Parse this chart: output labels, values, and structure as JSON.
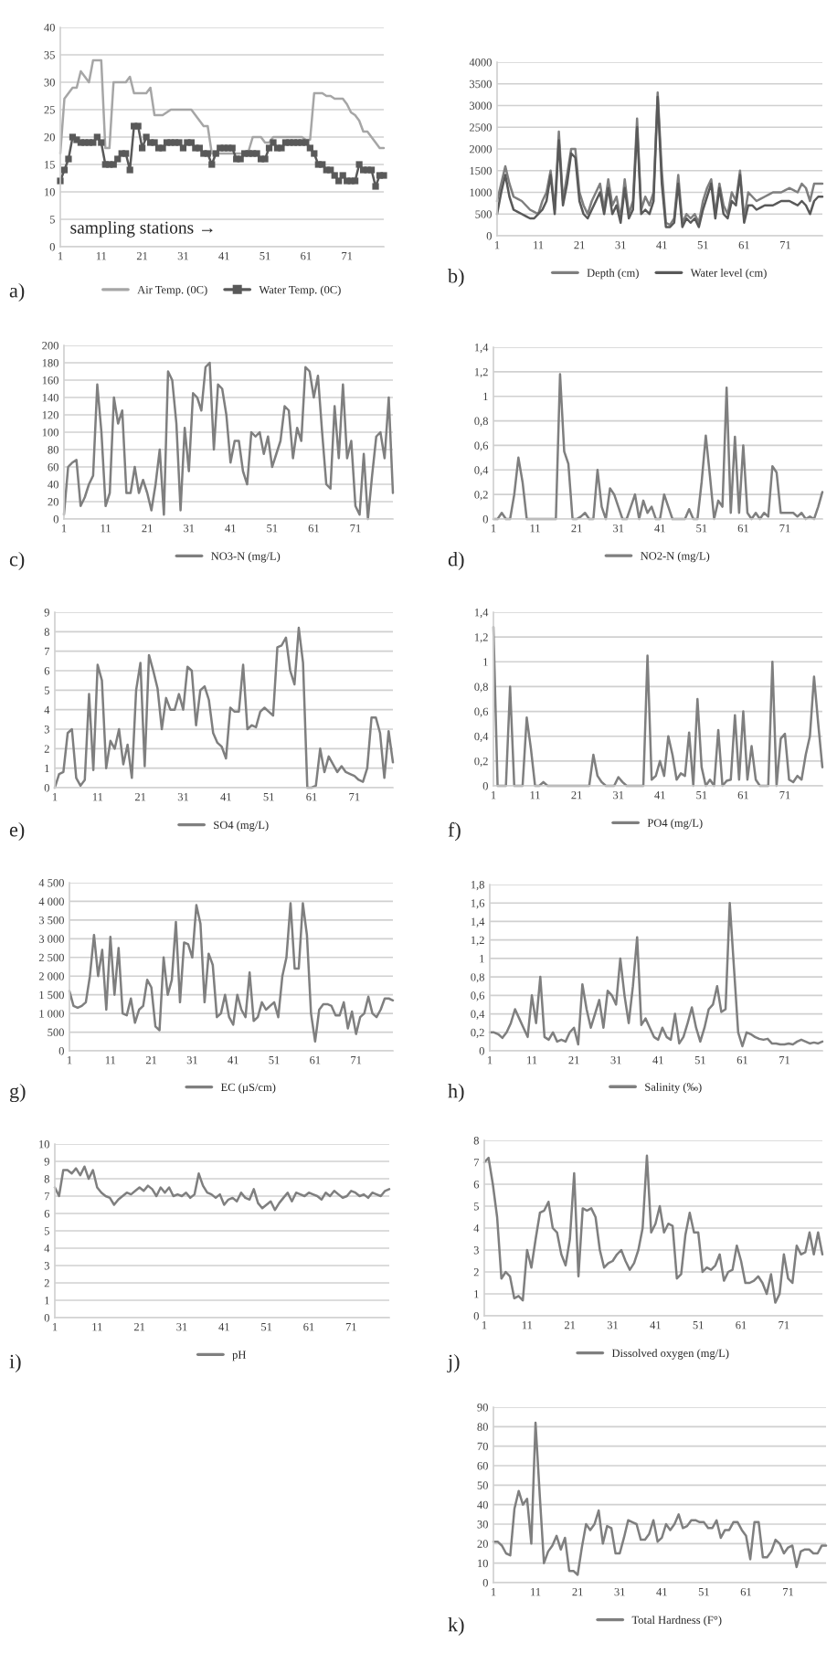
{
  "chart_data": [
    {
      "type": "line",
      "xlim": [
        1,
        80
      ],
      "xticks": [
        1,
        11,
        21,
        31,
        41,
        51,
        61,
        71
      ],
      "ylim": [
        0,
        40
      ],
      "yticks": [
        0,
        5,
        10,
        15,
        20,
        25,
        30,
        35,
        40
      ],
      "grid": "y",
      "legend": "bottom",
      "x": [
        1,
        2,
        3,
        4,
        5,
        6,
        7,
        8,
        9,
        10,
        11,
        12,
        13,
        14,
        15,
        16,
        17,
        18,
        19,
        20,
        21,
        22,
        23,
        24,
        25,
        26,
        27,
        28,
        29,
        30,
        31,
        32,
        33,
        34,
        35,
        36,
        37,
        38,
        39,
        40,
        41,
        42,
        43,
        44,
        45,
        46,
        47,
        48,
        49,
        50,
        51,
        52,
        53,
        54,
        55,
        56,
        57,
        58,
        59,
        60,
        61,
        62,
        63,
        64,
        65,
        66,
        67,
        68,
        69,
        70,
        71,
        72,
        73,
        74,
        75,
        76,
        77,
        78,
        79,
        80
      ],
      "series": [
        {
          "name": "Air Temp. (0C)",
          "color": "#a6a6a6",
          "marker": "none",
          "values": [
            17,
            27,
            28,
            29,
            29,
            32,
            31,
            30,
            34,
            34,
            34,
            18,
            18,
            30,
            30,
            30,
            30,
            31,
            28,
            28,
            28,
            28,
            29,
            24,
            24,
            24,
            24.5,
            25,
            25,
            25,
            25,
            25,
            25,
            24,
            23,
            22,
            22,
            17,
            17,
            17,
            17,
            17,
            17,
            17,
            17,
            17,
            17.5,
            20,
            20,
            20,
            19,
            19,
            20,
            20,
            20,
            20,
            20,
            20,
            20,
            20,
            19.5,
            19.5,
            28,
            28,
            28,
            27.5,
            27.5,
            27,
            27,
            27,
            26,
            24.5,
            24,
            23,
            21,
            21,
            20,
            19,
            18,
            18
          ]
        },
        {
          "name": "Water Temp. (0C)",
          "color": "#595959",
          "marker": "square",
          "values": [
            12,
            14,
            16,
            20,
            19.5,
            19,
            19,
            19,
            19,
            20,
            19,
            15,
            15,
            15,
            16,
            17,
            17,
            14,
            22,
            22,
            18,
            20,
            19,
            19,
            18,
            18,
            19,
            19,
            19,
            19,
            18,
            19,
            19,
            18,
            18,
            17,
            17,
            15,
            17,
            18,
            18,
            18,
            18,
            16,
            16,
            17,
            17,
            17,
            17,
            16,
            16,
            18,
            19,
            18,
            18,
            19,
            19,
            19,
            19,
            19,
            19,
            18,
            17,
            15,
            15,
            14,
            14,
            13,
            12,
            13,
            12,
            12,
            12,
            15,
            14,
            14,
            14,
            11,
            13,
            13
          ]
        }
      ],
      "annotations": [
        "sampling stations →",
        "a)"
      ]
    },
    {
      "type": "line",
      "xlim": [
        1,
        80
      ],
      "xticks": [
        1,
        11,
        21,
        31,
        41,
        51,
        61,
        71
      ],
      "ylim": [
        0,
        4000
      ],
      "yticks": [
        0,
        500,
        1000,
        1500,
        2000,
        2500,
        3000,
        3500,
        4000
      ],
      "grid": "y",
      "legend": "bottom",
      "x": [
        1,
        2,
        3,
        4,
        5,
        6,
        7,
        8,
        9,
        10,
        11,
        12,
        13,
        14,
        15,
        16,
        17,
        18,
        19,
        20,
        21,
        22,
        23,
        24,
        25,
        26,
        27,
        28,
        29,
        30,
        31,
        32,
        33,
        34,
        35,
        36,
        37,
        38,
        39,
        40,
        41,
        42,
        43,
        44,
        45,
        46,
        47,
        48,
        49,
        50,
        51,
        52,
        53,
        54,
        55,
        56,
        57,
        58,
        59,
        60,
        61,
        62,
        63,
        64,
        65,
        66,
        67,
        68,
        69,
        70,
        71,
        72,
        73,
        74,
        75,
        76,
        77,
        78,
        79,
        80
      ],
      "series": [
        {
          "name": "Depth (cm)",
          "color": "#7f7f7f",
          "values": [
            800,
            1200,
            1600,
            1200,
            900,
            850,
            800,
            700,
            600,
            550,
            500,
            800,
            1000,
            1500,
            600,
            2400,
            800,
            1400,
            2000,
            2000,
            1000,
            700,
            500,
            800,
            1000,
            1200,
            600,
            1300,
            700,
            900,
            400,
            1300,
            500,
            800,
            2700,
            600,
            900,
            700,
            1000,
            3300,
            1500,
            300,
            250,
            400,
            1400,
            300,
            500,
            400,
            500,
            300,
            800,
            1100,
            1300,
            500,
            1200,
            700,
            500,
            1000,
            800,
            1500,
            400,
            1000,
            900,
            800,
            850,
            900,
            950,
            1000,
            1000,
            1000,
            1050,
            1100,
            1050,
            1000,
            1200,
            1100,
            800,
            1200,
            1200,
            1200
          ]
        },
        {
          "name": "Water level (cm)",
          "color": "#595959",
          "values": [
            500,
            1000,
            1400,
            900,
            600,
            550,
            500,
            450,
            400,
            400,
            500,
            600,
            800,
            1400,
            500,
            2200,
            700,
            1200,
            1900,
            1800,
            800,
            500,
            400,
            600,
            800,
            1000,
            500,
            1100,
            500,
            700,
            300,
            1100,
            400,
            600,
            2500,
            500,
            600,
            500,
            800,
            3200,
            1200,
            200,
            200,
            300,
            1200,
            200,
            400,
            300,
            400,
            200,
            600,
            900,
            1200,
            400,
            1100,
            500,
            400,
            800,
            700,
            1400,
            300,
            700,
            700,
            600,
            650,
            700,
            700,
            700,
            750,
            800,
            800,
            800,
            750,
            700,
            800,
            700,
            500,
            800,
            900,
            900
          ]
        }
      ],
      "annotations": [
        "b)"
      ]
    },
    {
      "type": "line",
      "xlim": [
        1,
        80
      ],
      "xticks": [
        1,
        11,
        21,
        31,
        41,
        51,
        61,
        71
      ],
      "ylim": [
        0,
        200
      ],
      "yticks": [
        0,
        20,
        40,
        60,
        80,
        100,
        120,
        140,
        160,
        180,
        200
      ],
      "grid": "y",
      "legend": "bottom",
      "x": [
        1,
        2,
        3,
        4,
        5,
        6,
        7,
        8,
        9,
        10,
        11,
        12,
        13,
        14,
        15,
        16,
        17,
        18,
        19,
        20,
        21,
        22,
        23,
        24,
        25,
        26,
        27,
        28,
        29,
        30,
        31,
        32,
        33,
        34,
        35,
        36,
        37,
        38,
        39,
        40,
        41,
        42,
        43,
        44,
        45,
        46,
        47,
        48,
        49,
        50,
        51,
        52,
        53,
        54,
        55,
        56,
        57,
        58,
        59,
        60,
        61,
        62,
        63,
        64,
        65,
        66,
        67,
        68,
        69,
        70,
        71,
        72,
        73,
        74,
        75,
        76,
        77,
        78,
        79,
        80
      ],
      "series": [
        {
          "name": "NO3-N (mg/L)",
          "color": "#7f7f7f",
          "values": [
            5,
            60,
            65,
            68,
            15,
            25,
            40,
            50,
            155,
            100,
            15,
            30,
            140,
            110,
            125,
            30,
            30,
            60,
            30,
            45,
            30,
            10,
            40,
            80,
            5,
            170,
            160,
            110,
            10,
            105,
            55,
            145,
            140,
            125,
            175,
            180,
            80,
            155,
            150,
            120,
            65,
            90,
            90,
            55,
            40,
            100,
            95,
            100,
            75,
            95,
            60,
            75,
            90,
            130,
            125,
            70,
            105,
            90,
            175,
            170,
            140,
            165,
            100,
            40,
            35,
            130,
            70,
            155,
            70,
            90,
            15,
            5,
            75,
            0,
            50,
            95,
            100,
            70,
            140,
            30
          ]
        }
      ],
      "annotations": [
        "c)"
      ]
    },
    {
      "type": "line",
      "xlim": [
        1,
        80
      ],
      "xticks": [
        1,
        11,
        21,
        31,
        41,
        51,
        61,
        71
      ],
      "ylim": [
        0,
        1.4
      ],
      "yticks": [
        0,
        {
          "value": 0.2,
          "label": "0,2"
        },
        {
          "value": 0.4,
          "label": "0,4"
        },
        {
          "value": 0.6,
          "label": "0,6"
        },
        {
          "value": 0.8,
          "label": "0,8"
        },
        1,
        {
          "value": 1.2,
          "label": "1,2"
        },
        {
          "value": 1.4,
          "label": "1,4"
        }
      ],
      "grid": "y",
      "legend": "bottom",
      "x": [
        1,
        2,
        3,
        4,
        5,
        6,
        7,
        8,
        9,
        10,
        11,
        12,
        13,
        14,
        15,
        16,
        17,
        18,
        19,
        20,
        21,
        22,
        23,
        24,
        25,
        26,
        27,
        28,
        29,
        30,
        31,
        32,
        33,
        34,
        35,
        36,
        37,
        38,
        39,
        40,
        41,
        42,
        43,
        44,
        45,
        46,
        47,
        48,
        49,
        50,
        51,
        52,
        53,
        54,
        55,
        56,
        57,
        58,
        59,
        60,
        61,
        62,
        63,
        64,
        65,
        66,
        67,
        68,
        69,
        70,
        71,
        72,
        73,
        74,
        75,
        76,
        77,
        78,
        79,
        80
      ],
      "series": [
        {
          "name": "NO2-N (mg/L)",
          "color": "#7f7f7f",
          "values": [
            0,
            0,
            0.05,
            0,
            0,
            0.2,
            0.5,
            0.3,
            0,
            0,
            0,
            0,
            0,
            0,
            0,
            0,
            1.18,
            0.55,
            0.45,
            0,
            0,
            0.02,
            0.05,
            0,
            0,
            0.4,
            0.1,
            0,
            0.25,
            0.2,
            0.1,
            0,
            0,
            0.1,
            0.2,
            0,
            0.15,
            0.05,
            0.1,
            0,
            0,
            0.2,
            0.1,
            0,
            0,
            0,
            0,
            0.08,
            0,
            0,
            0.3,
            0.68,
            0.35,
            0,
            0.15,
            0.1,
            1.07,
            0.05,
            0.67,
            0.05,
            0.6,
            0.05,
            0,
            0.05,
            0,
            0.05,
            0.02,
            0.43,
            0.38,
            0.05,
            0.05,
            0.05,
            0.05,
            0.02,
            0.05,
            0,
            0.02,
            0,
            0.1,
            0.22
          ]
        }
      ],
      "annotations": [
        "d)"
      ]
    },
    {
      "type": "line",
      "xlim": [
        1,
        80
      ],
      "xticks": [
        1,
        11,
        21,
        31,
        41,
        51,
        61,
        71
      ],
      "ylim": [
        0,
        9
      ],
      "yticks": [
        0,
        1,
        2,
        3,
        4,
        5,
        6,
        7,
        8,
        9
      ],
      "grid": "y",
      "legend": "bottom",
      "x": [
        1,
        2,
        3,
        4,
        5,
        6,
        7,
        8,
        9,
        10,
        11,
        12,
        13,
        14,
        15,
        16,
        17,
        18,
        19,
        20,
        21,
        22,
        23,
        24,
        25,
        26,
        27,
        28,
        29,
        30,
        31,
        32,
        33,
        34,
        35,
        36,
        37,
        38,
        39,
        40,
        41,
        42,
        43,
        44,
        45,
        46,
        47,
        48,
        49,
        50,
        51,
        52,
        53,
        54,
        55,
        56,
        57,
        58,
        59,
        60,
        61,
        62,
        63,
        64,
        65,
        66,
        67,
        68,
        69,
        70,
        71,
        72,
        73,
        74,
        75,
        76,
        77,
        78,
        79,
        80
      ],
      "series": [
        {
          "name": "SO4 (mg/L)",
          "color": "#7f7f7f",
          "values": [
            0,
            0.7,
            0.8,
            2.8,
            3,
            0.5,
            0.1,
            0.4,
            4.8,
            0.9,
            6.3,
            5.5,
            1,
            2.4,
            2,
            3,
            1.2,
            2.2,
            0.5,
            5,
            6.4,
            1.1,
            6.8,
            6,
            5.1,
            3,
            4.6,
            4,
            4,
            4.8,
            4,
            6.2,
            6,
            3.2,
            5,
            5.2,
            4.5,
            2.8,
            2.3,
            2.1,
            1.5,
            4.1,
            3.9,
            3.9,
            6.3,
            3,
            3.2,
            3.1,
            3.9,
            4.1,
            3.9,
            3.7,
            7.2,
            7.3,
            7.7,
            6,
            5.3,
            8.2,
            6.4,
            0,
            0,
            0.1,
            2,
            0.8,
            1.6,
            1.2,
            0.8,
            1.1,
            0.8,
            0.7,
            0.6,
            0.4,
            0.3,
            1,
            3.6,
            3.6,
            2.8,
            0.5,
            2.9,
            1.3
          ]
        }
      ],
      "annotations": [
        "e)"
      ]
    },
    {
      "type": "line",
      "xlim": [
        1,
        80
      ],
      "xticks": [
        1,
        11,
        21,
        31,
        41,
        51,
        61,
        71
      ],
      "ylim": [
        0,
        1.4
      ],
      "yticks": [
        0,
        {
          "value": 0.2,
          "label": "0,2"
        },
        {
          "value": 0.4,
          "label": "0,4"
        },
        {
          "value": 0.6,
          "label": "0,6"
        },
        {
          "value": 0.8,
          "label": "0,8"
        },
        1,
        {
          "value": 1.2,
          "label": "1,2"
        },
        {
          "value": 1.4,
          "label": "1,4"
        }
      ],
      "grid": "y",
      "legend": "bottom",
      "x": [
        1,
        2,
        3,
        4,
        5,
        6,
        7,
        8,
        9,
        10,
        11,
        12,
        13,
        14,
        15,
        16,
        17,
        18,
        19,
        20,
        21,
        22,
        23,
        24,
        25,
        26,
        27,
        28,
        29,
        30,
        31,
        32,
        33,
        34,
        35,
        36,
        37,
        38,
        39,
        40,
        41,
        42,
        43,
        44,
        45,
        46,
        47,
        48,
        49,
        50,
        51,
        52,
        53,
        54,
        55,
        56,
        57,
        58,
        59,
        60,
        61,
        62,
        63,
        64,
        65,
        66,
        67,
        68,
        69,
        70,
        71,
        72,
        73,
        74,
        75,
        76,
        77,
        78,
        79,
        80
      ],
      "series": [
        {
          "name": "PO4 (mg/L)",
          "color": "#7f7f7f",
          "values": [
            1.28,
            0,
            0,
            0,
            0.8,
            0,
            0,
            0,
            0.55,
            0.3,
            0,
            0,
            0.03,
            0,
            0,
            0,
            0,
            0,
            0,
            0,
            0,
            0,
            0,
            0,
            0.25,
            0.08,
            0.03,
            0,
            0,
            0,
            0.07,
            0.03,
            0,
            0,
            0,
            0,
            0,
            1.05,
            0.05,
            0.08,
            0.2,
            0.08,
            0.4,
            0.25,
            0.05,
            0.1,
            0.08,
            0.43,
            0,
            0.7,
            0.15,
            0,
            0.05,
            0,
            0.45,
            0,
            0.04,
            0.05,
            0.57,
            0.05,
            0.6,
            0.05,
            0.32,
            0.05,
            0,
            0,
            0,
            1,
            0,
            0.38,
            0.42,
            0.05,
            0.03,
            0.08,
            0.05,
            0.25,
            0.4,
            0.88,
            0.5,
            0.15
          ]
        }
      ],
      "annotations": [
        "f)"
      ]
    },
    {
      "type": "line",
      "xlim": [
        1,
        80
      ],
      "xticks": [
        1,
        11,
        21,
        31,
        41,
        51,
        61,
        71
      ],
      "ylim": [
        0,
        4500
      ],
      "yticks": [
        0,
        500,
        {
          "value": 1000,
          "label": "1 000"
        },
        {
          "value": 1500,
          "label": "1 500"
        },
        {
          "value": 2000,
          "label": "2 000"
        },
        {
          "value": 2500,
          "label": "2 500"
        },
        {
          "value": 3000,
          "label": "3 000"
        },
        {
          "value": 3500,
          "label": "3 500"
        },
        {
          "value": 4000,
          "label": "4 000"
        },
        {
          "value": 4500,
          "label": "4 500"
        }
      ],
      "grid": "y",
      "legend": "bottom",
      "x": [
        1,
        2,
        3,
        4,
        5,
        6,
        7,
        8,
        9,
        10,
        11,
        12,
        13,
        14,
        15,
        16,
        17,
        18,
        19,
        20,
        21,
        22,
        23,
        24,
        25,
        26,
        27,
        28,
        29,
        30,
        31,
        32,
        33,
        34,
        35,
        36,
        37,
        38,
        39,
        40,
        41,
        42,
        43,
        44,
        45,
        46,
        47,
        48,
        49,
        50,
        51,
        52,
        53,
        54,
        55,
        56,
        57,
        58,
        59,
        60,
        61,
        62,
        63,
        64,
        65,
        66,
        67,
        68,
        69,
        70,
        71,
        72,
        73,
        74,
        75,
        76,
        77,
        78,
        79,
        80
      ],
      "series": [
        {
          "name": "EC (µS/cm)",
          "color": "#7f7f7f",
          "values": [
            1600,
            1200,
            1150,
            1200,
            1300,
            2000,
            3100,
            2000,
            2700,
            1100,
            3050,
            1500,
            2750,
            1000,
            950,
            1400,
            750,
            1100,
            1200,
            1900,
            1700,
            650,
            550,
            2500,
            1500,
            1900,
            3450,
            1300,
            2900,
            2850,
            2500,
            3900,
            3400,
            1300,
            2600,
            2300,
            900,
            1000,
            1500,
            900,
            700,
            1500,
            1100,
            900,
            2100,
            800,
            900,
            1300,
            1100,
            1200,
            1300,
            900,
            2000,
            2500,
            3950,
            2200,
            2200,
            3950,
            3100,
            1000,
            250,
            1100,
            1250,
            1250,
            1200,
            950,
            950,
            1300,
            600,
            1050,
            450,
            900,
            1000,
            1450,
            1000,
            900,
            1100,
            1400,
            1400,
            1350
          ]
        }
      ],
      "annotations": [
        "g)"
      ]
    },
    {
      "type": "line",
      "xlim": [
        1,
        80
      ],
      "xticks": [
        1,
        11,
        21,
        31,
        41,
        51,
        61,
        71
      ],
      "ylim": [
        0,
        1.8
      ],
      "yticks": [
        0,
        {
          "value": 0.2,
          "label": "0,2"
        },
        {
          "value": 0.4,
          "label": "0,4"
        },
        {
          "value": 0.6,
          "label": "0,6"
        },
        {
          "value": 0.8,
          "label": "0,8"
        },
        1,
        {
          "value": 1.2,
          "label": "1,2"
        },
        {
          "value": 1.4,
          "label": "1,4"
        },
        {
          "value": 1.6,
          "label": "1,6"
        },
        {
          "value": 1.8,
          "label": "1,8"
        }
      ],
      "grid": "y",
      "legend": "bottom",
      "x": [
        1,
        2,
        3,
        4,
        5,
        6,
        7,
        8,
        9,
        10,
        11,
        12,
        13,
        14,
        15,
        16,
        17,
        18,
        19,
        20,
        21,
        22,
        23,
        24,
        25,
        26,
        27,
        28,
        29,
        30,
        31,
        32,
        33,
        34,
        35,
        36,
        37,
        38,
        39,
        40,
        41,
        42,
        43,
        44,
        45,
        46,
        47,
        48,
        49,
        50,
        51,
        52,
        53,
        54,
        55,
        56,
        57,
        58,
        59,
        60,
        61,
        62,
        63,
        64,
        65,
        66,
        67,
        68,
        69,
        70,
        71,
        72,
        73,
        74,
        75,
        76,
        77,
        78,
        79,
        80
      ],
      "series": [
        {
          "name": "Salinity (‰)",
          "color": "#7f7f7f",
          "values": [
            0.2,
            0.2,
            0.18,
            0.14,
            0.2,
            0.3,
            0.45,
            0.35,
            0.25,
            0.15,
            0.6,
            0.3,
            0.8,
            0.15,
            0.12,
            0.2,
            0.1,
            0.12,
            0.1,
            0.2,
            0.25,
            0.07,
            0.72,
            0.45,
            0.25,
            0.4,
            0.55,
            0.25,
            0.65,
            0.6,
            0.5,
            1,
            0.6,
            0.3,
            0.7,
            1.23,
            0.28,
            0.35,
            0.25,
            0.15,
            0.12,
            0.25,
            0.15,
            0.12,
            0.4,
            0.08,
            0.15,
            0.3,
            0.47,
            0.25,
            0.1,
            0.25,
            0.45,
            0.5,
            0.7,
            0.42,
            0.45,
            1.6,
            0.9,
            0.2,
            0.05,
            0.2,
            0.18,
            0.15,
            0.13,
            0.12,
            0.13,
            0.08,
            0.08,
            0.07,
            0.07,
            0.08,
            0.07,
            0.1,
            0.12,
            0.1,
            0.08,
            0.09,
            0.08,
            0.1
          ]
        }
      ],
      "annotations": [
        "h)"
      ]
    },
    {
      "type": "line",
      "xlim": [
        1,
        80
      ],
      "xticks": [
        1,
        11,
        21,
        31,
        41,
        51,
        61,
        71
      ],
      "ylim": [
        0,
        10
      ],
      "yticks": [
        0,
        1,
        2,
        3,
        4,
        5,
        6,
        7,
        8,
        9,
        10
      ],
      "grid": "y",
      "legend": "bottom",
      "x": [
        1,
        2,
        3,
        4,
        5,
        6,
        7,
        8,
        9,
        10,
        11,
        12,
        13,
        14,
        15,
        16,
        17,
        18,
        19,
        20,
        21,
        22,
        23,
        24,
        25,
        26,
        27,
        28,
        29,
        30,
        31,
        32,
        33,
        34,
        35,
        36,
        37,
        38,
        39,
        40,
        41,
        42,
        43,
        44,
        45,
        46,
        47,
        48,
        49,
        50,
        51,
        52,
        53,
        54,
        55,
        56,
        57,
        58,
        59,
        60,
        61,
        62,
        63,
        64,
        65,
        66,
        67,
        68,
        69,
        70,
        71,
        72,
        73,
        74,
        75,
        76,
        77,
        78,
        79,
        80
      ],
      "series": [
        {
          "name": "pH",
          "color": "#7f7f7f",
          "values": [
            7.5,
            7,
            8.5,
            8.5,
            8.3,
            8.6,
            8.2,
            8.7,
            8,
            8.5,
            7.5,
            7.2,
            7,
            6.9,
            6.5,
            6.8,
            7,
            7.2,
            7.1,
            7.3,
            7.5,
            7.3,
            7.6,
            7.4,
            7,
            7.5,
            7.2,
            7.5,
            7,
            7.1,
            7,
            7.2,
            6.9,
            7.1,
            8.3,
            7.6,
            7.2,
            7.1,
            6.9,
            7.1,
            6.5,
            6.8,
            6.9,
            6.7,
            7.2,
            6.9,
            6.8,
            7.4,
            6.6,
            6.3,
            6.5,
            6.7,
            6.2,
            6.6,
            6.9,
            7.2,
            6.7,
            7.2,
            7.1,
            7,
            7.2,
            7.1,
            7,
            6.8,
            7.2,
            7,
            7.3,
            7.1,
            6.9,
            7,
            7.3,
            7.2,
            7,
            7.1,
            6.9,
            7.2,
            7.1,
            7,
            7.3,
            7.4
          ]
        }
      ],
      "annotations": [
        "i)"
      ]
    },
    {
      "type": "line",
      "xlim": [
        1,
        80
      ],
      "xticks": [
        1,
        11,
        21,
        31,
        41,
        51,
        61,
        71
      ],
      "ylim": [
        0,
        8
      ],
      "yticks": [
        0,
        1,
        2,
        3,
        4,
        5,
        6,
        7,
        8
      ],
      "grid": "y",
      "legend": "bottom",
      "x": [
        1,
        2,
        3,
        4,
        5,
        6,
        7,
        8,
        9,
        10,
        11,
        12,
        13,
        14,
        15,
        16,
        17,
        18,
        19,
        20,
        21,
        22,
        23,
        24,
        25,
        26,
        27,
        28,
        29,
        30,
        31,
        32,
        33,
        34,
        35,
        36,
        37,
        38,
        39,
        40,
        41,
        42,
        43,
        44,
        45,
        46,
        47,
        48,
        49,
        50,
        51,
        52,
        53,
        54,
        55,
        56,
        57,
        58,
        59,
        60,
        61,
        62,
        63,
        64,
        65,
        66,
        67,
        68,
        69,
        70,
        71,
        72,
        73,
        74,
        75,
        76,
        77,
        78,
        79,
        80
      ],
      "series": [
        {
          "name": "Dissolved oxygen (mg/L)",
          "color": "#7f7f7f",
          "values": [
            7,
            7.2,
            6,
            4.5,
            1.7,
            2,
            1.8,
            0.8,
            0.9,
            0.7,
            3,
            2.2,
            3.5,
            4.7,
            4.8,
            5.2,
            4,
            3.8,
            2.8,
            2.3,
            3.5,
            6.5,
            1.8,
            4.9,
            4.8,
            4.9,
            4.5,
            3,
            2.2,
            2.4,
            2.5,
            2.8,
            3,
            2.5,
            2.1,
            2.4,
            3,
            4,
            7.3,
            3.8,
            4.2,
            5,
            3.8,
            4.2,
            4.1,
            1.7,
            1.9,
            3.7,
            4.7,
            3.8,
            3.8,
            2,
            2.2,
            2.1,
            2.3,
            2.8,
            1.6,
            2,
            2.1,
            3.2,
            2.5,
            1.5,
            1.5,
            1.6,
            1.8,
            1.5,
            1,
            1.9,
            0.6,
            1,
            2.8,
            1.7,
            1.5,
            3.2,
            2.8,
            2.9,
            3.8,
            2.8,
            3.8,
            2.8
          ]
        }
      ],
      "annotations": [
        "j)"
      ]
    },
    {
      "type": "line",
      "xlim": [
        1,
        80
      ],
      "xticks": [
        1,
        11,
        21,
        31,
        41,
        51,
        61,
        71
      ],
      "ylim": [
        0,
        90
      ],
      "yticks": [
        0,
        10,
        20,
        30,
        40,
        50,
        60,
        70,
        80,
        90
      ],
      "grid": "y",
      "legend": "bottom",
      "x": [
        1,
        2,
        3,
        4,
        5,
        6,
        7,
        8,
        9,
        10,
        11,
        12,
        13,
        14,
        15,
        16,
        17,
        18,
        19,
        20,
        21,
        22,
        23,
        24,
        25,
        26,
        27,
        28,
        29,
        30,
        31,
        32,
        33,
        34,
        35,
        36,
        37,
        38,
        39,
        40,
        41,
        42,
        43,
        44,
        45,
        46,
        47,
        48,
        49,
        50,
        51,
        52,
        53,
        54,
        55,
        56,
        57,
        58,
        59,
        60,
        61,
        62,
        63,
        64,
        65,
        66,
        67,
        68,
        69,
        70,
        71,
        72,
        73,
        74,
        75,
        76,
        77,
        78,
        79,
        80
      ],
      "series": [
        {
          "name": "Total Hardness (F°)",
          "color": "#7f7f7f",
          "values": [
            21,
            21,
            19,
            15,
            14,
            38,
            47,
            40,
            43,
            20,
            82,
            45,
            10,
            16,
            19,
            24,
            17,
            23,
            6,
            6,
            4,
            18,
            30,
            27,
            30,
            37,
            20,
            29,
            28,
            15,
            15,
            23,
            32,
            31,
            30,
            22,
            22,
            25,
            32,
            21,
            23,
            30,
            27,
            30,
            35,
            28,
            29,
            32,
            32,
            31,
            31,
            28,
            28,
            32,
            23,
            27,
            27,
            31,
            31,
            27,
            24,
            12,
            31,
            31,
            13,
            13,
            16,
            22,
            20,
            15,
            18,
            19,
            8,
            16,
            17,
            17,
            15,
            15,
            19,
            19
          ]
        }
      ],
      "annotations": [
        "k)"
      ]
    }
  ]
}
